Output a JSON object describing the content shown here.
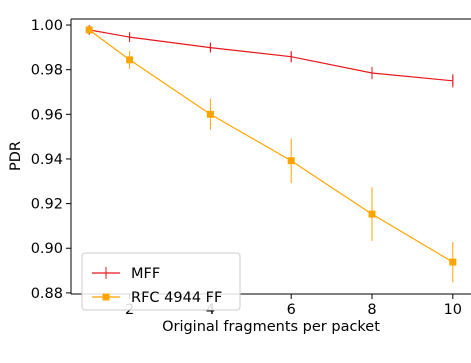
{
  "chart_data": {
    "type": "line",
    "title": "",
    "xlabel": "Original fragments per packet",
    "ylabel": "PDR",
    "xlim": [
      0.55,
      10.45
    ],
    "ylim": [
      0.8795,
      1.0027
    ],
    "x_ticks": [
      2,
      4,
      6,
      8,
      10
    ],
    "x_tick_labels": [
      "2",
      "4",
      "6",
      "8",
      "10"
    ],
    "y_ticks": [
      0.88,
      0.9,
      0.92,
      0.94,
      0.96,
      0.98,
      1.0
    ],
    "y_tick_labels": [
      "0.88",
      "0.90",
      "0.92",
      "0.94",
      "0.96",
      "0.98",
      "1.00"
    ],
    "grid": false,
    "legend_position": "lower-left",
    "x": [
      1,
      2,
      4,
      6,
      8,
      10
    ],
    "series": [
      {
        "name": "MFF",
        "color": "#e8181c",
        "marker": "vertical-tick",
        "values": [
          0.9978,
          0.9946,
          0.9899,
          0.9858,
          0.9785,
          0.975
        ],
        "errors": [
          0.0008,
          0.0012,
          0.0018,
          0.0025,
          0.0028,
          0.003
        ]
      },
      {
        "name": "RFC 4944 FF",
        "color": "#ffa500",
        "marker": "square",
        "values": [
          0.9978,
          0.9844,
          0.96,
          0.9392,
          0.9153,
          0.8938
        ],
        "errors": [
          0.0009,
          0.004,
          0.007,
          0.01,
          0.012,
          0.009
        ]
      }
    ]
  },
  "colors": {
    "axis": "#000000",
    "background": "#ffffff"
  }
}
